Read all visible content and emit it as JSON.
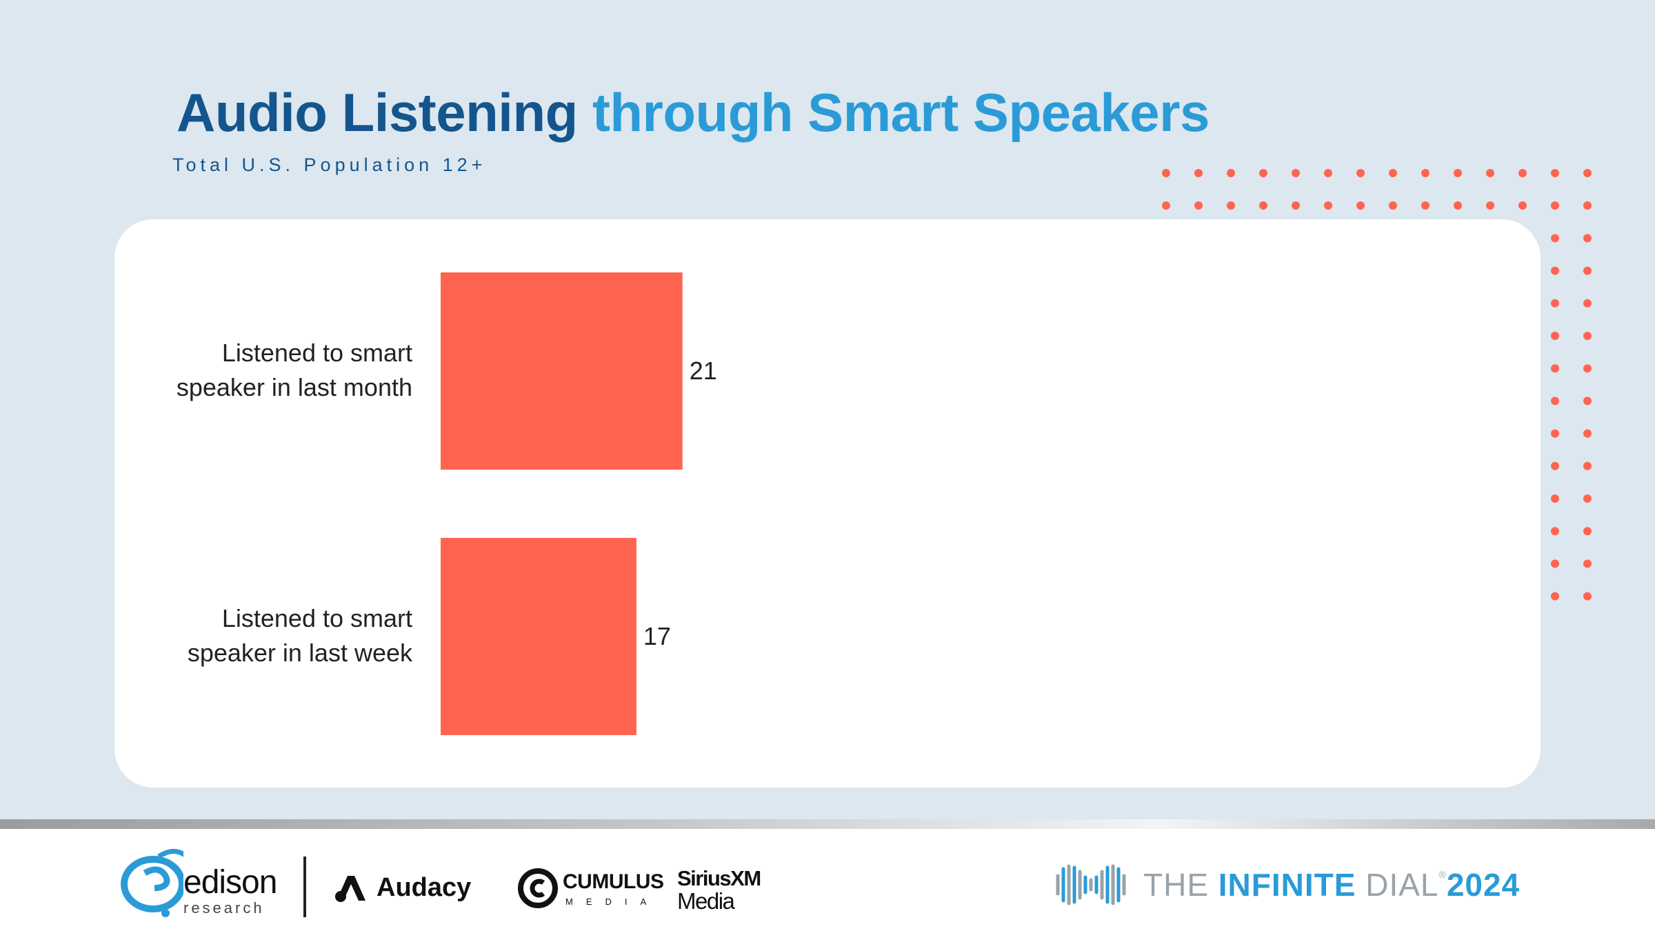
{
  "title": {
    "part1": "Audio Listening",
    "part2": "through Smart Speakers"
  },
  "subtitle": "Total U.S. Population 12+",
  "colors": {
    "background": "#dce7ef",
    "title_dark": "#14558e",
    "title_light": "#2a9bd7",
    "bar": "#ff6450",
    "dots": "#ff6450"
  },
  "chart_data": {
    "type": "bar",
    "orientation": "horizontal",
    "categories": [
      "Listened to smart speaker in last month",
      "Listened to smart speaker in last week"
    ],
    "category_lines": [
      [
        "Listened to smart",
        "speaker in last month"
      ],
      [
        "Listened to smart",
        "speaker in last week"
      ]
    ],
    "values": [
      21,
      17
    ],
    "xlim": [
      0,
      100
    ],
    "grid": false,
    "legend": "none"
  },
  "footer": {
    "logos": {
      "edison": {
        "name": "edison",
        "sub": "research"
      },
      "audacy": "Audacy",
      "cumulus": {
        "name": "CUMULUS",
        "sub": "MEDIA"
      },
      "siriusxm": {
        "name": "SiriusXM",
        "sub": "Media"
      }
    },
    "brand": {
      "the": "THE ",
      "infinite": "INFINITE",
      "dial": " DIAL",
      "reg": "®",
      "year": "2024"
    }
  }
}
